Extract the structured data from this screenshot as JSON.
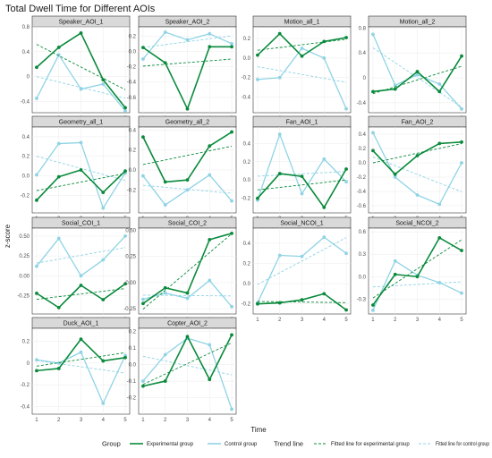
{
  "chart_data": {
    "type": "line",
    "title": "Total Dwell Time for Different AOIs",
    "xlabel": "Time",
    "ylabel": "z-score",
    "x": [
      1,
      2,
      3,
      4,
      5
    ],
    "grid": true,
    "colors": {
      "experimental": "#0a8a3c",
      "control": "#8fd3e4",
      "strip_bg": "#d9d9d9"
    },
    "legend": {
      "position": "bottom",
      "group_title": "Group",
      "group_items": [
        "Experimental group",
        "Control group"
      ],
      "trend_title": "Trend line",
      "trend_items": [
        "Fitted line for experimental group",
        "Fitted line for control group"
      ]
    },
    "panels": [
      {
        "name": "Speaker_AOI_1",
        "ylim": [
          -0.58,
          0.8
        ],
        "yticks": [
          -0.4,
          0,
          0.4,
          0.8
        ],
        "yticklabels": [
          "-0.4",
          "0",
          "0.4",
          "0.8"
        ],
        "series": [
          {
            "name": "Experimental group",
            "values": [
              0.15,
              0.47,
              0.7,
              -0.05,
              -0.5
            ]
          },
          {
            "name": "Control group",
            "values": [
              -0.35,
              0.35,
              -0.2,
              -0.12,
              -0.55
            ]
          }
        ]
      },
      {
        "name": "Speaker_AOI_2",
        "ylim": [
          -0.8,
          0.32
        ],
        "yticks": [
          -0.6,
          -0.4,
          -0.2,
          0,
          0.2
        ],
        "yticklabels": [
          "-0.6",
          "-0.4",
          "-0.2",
          "0.0",
          "0.2"
        ],
        "series": [
          {
            "name": "Experimental group",
            "values": [
              0.05,
              -0.15,
              -0.75,
              0.06,
              0.06
            ]
          },
          {
            "name": "Control group",
            "values": [
              -0.1,
              0.25,
              0.15,
              0.23,
              0.1
            ]
          }
        ]
      },
      {
        "name": "Motion_all_1",
        "ylim": [
          -0.56,
          0.32
        ],
        "yticks": [
          -0.4,
          -0.2,
          0,
          0.2
        ],
        "yticklabels": [
          "-0.4",
          "-0.2",
          "0.0",
          "0.2"
        ],
        "series": [
          {
            "name": "Experimental group",
            "values": [
              0.03,
              0.25,
              0.02,
              0.17,
              0.21
            ]
          },
          {
            "name": "Control group",
            "values": [
              -0.22,
              -0.2,
              0.1,
              0.0,
              -0.52
            ]
          }
        ]
      },
      {
        "name": "Motion_all_2",
        "ylim": [
          -0.56,
          0.82
        ],
        "yticks": [
          -0.4,
          0,
          0.4,
          0.8
        ],
        "yticklabels": [
          "-0.4",
          "0",
          "0.4",
          "0.8"
        ],
        "series": [
          {
            "name": "Experimental group",
            "values": [
              -0.22,
              -0.18,
              0.1,
              -0.22,
              0.35
            ]
          },
          {
            "name": "Control group",
            "values": [
              0.7,
              -0.12,
              0.05,
              -0.1,
              -0.5
            ]
          }
        ]
      },
      {
        "name": "Geometry_all_1",
        "ylim": [
          -0.38,
          0.5
        ],
        "yticks": [
          -0.2,
          0,
          0.2,
          0.4
        ],
        "yticklabels": [
          "-0.2",
          "0.0",
          "0.2",
          "0.4"
        ],
        "series": [
          {
            "name": "Experimental group",
            "values": [
              -0.25,
              -0.01,
              0.06,
              -0.17,
              0.05
            ]
          },
          {
            "name": "Control group",
            "values": [
              0.01,
              0.33,
              0.34,
              -0.33,
              0.03
            ]
          }
        ]
      },
      {
        "name": "Geometry_all_2",
        "ylim": [
          -0.43,
          0.43
        ],
        "yticks": [
          -0.2,
          0,
          0.2,
          0.4
        ],
        "yticklabels": [
          "-0.2",
          "0.0",
          "0.2",
          "0.4"
        ],
        "series": [
          {
            "name": "Experimental group",
            "values": [
              0.33,
              -0.12,
              -0.1,
              0.24,
              0.38
            ]
          },
          {
            "name": "Control group",
            "values": [
              -0.06,
              -0.35,
              -0.2,
              -0.05,
              -0.31
            ]
          }
        ]
      },
      {
        "name": "Fan_AOI_1",
        "ylim": [
          -0.36,
          0.58
        ],
        "yticks": [
          -0.2,
          0,
          0.2,
          0.4
        ],
        "yticklabels": [
          "-0.2",
          "0.0",
          "0.2",
          "0.4"
        ],
        "series": [
          {
            "name": "Experimental group",
            "values": [
              -0.2,
              0.07,
              0.04,
              -0.3,
              0.12
            ]
          },
          {
            "name": "Control group",
            "values": [
              -0.22,
              0.5,
              -0.15,
              0.23,
              -0.02
            ]
          }
        ]
      },
      {
        "name": "Fan_AOI_2",
        "ylim": [
          -0.7,
          0.5
        ],
        "yticks": [
          -0.6,
          -0.4,
          -0.2,
          0,
          0.2,
          0.4
        ],
        "yticklabels": [
          "-0.6",
          "-0.4",
          "-0.2",
          "0.0",
          "0.2",
          "0.4"
        ],
        "series": [
          {
            "name": "Experimental group",
            "values": [
              0.17,
              -0.16,
              0.1,
              0.27,
              0.29
            ]
          },
          {
            "name": "Control group",
            "values": [
              0.42,
              -0.2,
              -0.45,
              -0.58,
              0.0
            ]
          }
        ]
      },
      {
        "name": "Social_COI_1",
        "ylim": [
          -0.48,
          0.6
        ],
        "yticks": [
          -0.25,
          0,
          0.25,
          0.5
        ],
        "yticklabels": [
          "-0.25",
          "0.00",
          "0.25",
          "0.50"
        ],
        "series": [
          {
            "name": "Experimental group",
            "values": [
              -0.22,
              -0.4,
              -0.12,
              -0.3,
              -0.1
            ]
          },
          {
            "name": "Control group",
            "values": [
              0.12,
              0.47,
              0.0,
              0.2,
              0.5
            ]
          }
        ]
      },
      {
        "name": "Social_COI_2",
        "ylim": [
          -0.3,
          0.52
        ],
        "yticks": [
          -0.25,
          0,
          0.25,
          0.5
        ],
        "yticklabels": [
          "-0.25",
          "0.00",
          "0.25",
          "0.50"
        ],
        "series": [
          {
            "name": "Experimental group",
            "values": [
              -0.2,
              -0.05,
              -0.1,
              0.41,
              0.47
            ]
          },
          {
            "name": "Control group",
            "values": [
              -0.16,
              -0.1,
              -0.15,
              0.02,
              -0.23
            ]
          }
        ]
      },
      {
        "name": "Social_NCOI_1",
        "ylim": [
          -0.3,
          0.55
        ],
        "yticks": [
          -0.2,
          0,
          0.2,
          0.4
        ],
        "yticklabels": [
          "-0.2",
          "0.0",
          "0.2",
          "0.4"
        ],
        "series": [
          {
            "name": "Experimental group",
            "values": [
              -0.2,
              -0.19,
              -0.16,
              -0.1,
              -0.26
            ]
          },
          {
            "name": "Control group",
            "values": [
              -0.19,
              0.28,
              0.27,
              0.46,
              0.3
            ]
          }
        ]
      },
      {
        "name": "Social_NCOI_2",
        "ylim": [
          -0.5,
          0.65
        ],
        "yticks": [
          -0.3,
          0,
          0.3,
          0.6
        ],
        "yticklabels": [
          "-0.3",
          "0.0",
          "0.3",
          "0.6"
        ],
        "series": [
          {
            "name": "Experimental group",
            "values": [
              -0.38,
              0.03,
              0.0,
              0.52,
              0.35
            ]
          },
          {
            "name": "Control group",
            "values": [
              -0.45,
              0.21,
              0.02,
              -0.08,
              -0.22
            ]
          }
        ]
      },
      {
        "name": "Duck_AOI_1",
        "ylim": [
          -0.47,
          0.32
        ],
        "yticks": [
          -0.4,
          -0.2,
          0,
          0.2
        ],
        "yticklabels": [
          "-0.4",
          "-0.2",
          "0",
          "0.2"
        ],
        "series": [
          {
            "name": "Experimental group",
            "values": [
              -0.07,
              -0.05,
              0.22,
              0.02,
              0.05
            ]
          },
          {
            "name": "Control group",
            "values": [
              0.03,
              0.0,
              0.1,
              -0.37,
              0.07
            ]
          }
        ]
      },
      {
        "name": "Copter_AOI_2",
        "ylim": [
          -0.3,
          0.22
        ],
        "yticks": [
          -0.2,
          -0.1,
          0,
          0.1,
          0.2
        ],
        "yticklabels": [
          "-0.2",
          "-0.1",
          "0.0",
          "0.1",
          "0.2"
        ],
        "series": [
          {
            "name": "Experimental group",
            "values": [
              -0.13,
              -0.1,
              0.17,
              -0.09,
              0.18
            ]
          },
          {
            "name": "Control group",
            "values": [
              -0.1,
              0.06,
              0.16,
              0.12,
              -0.27
            ]
          }
        ]
      }
    ]
  }
}
